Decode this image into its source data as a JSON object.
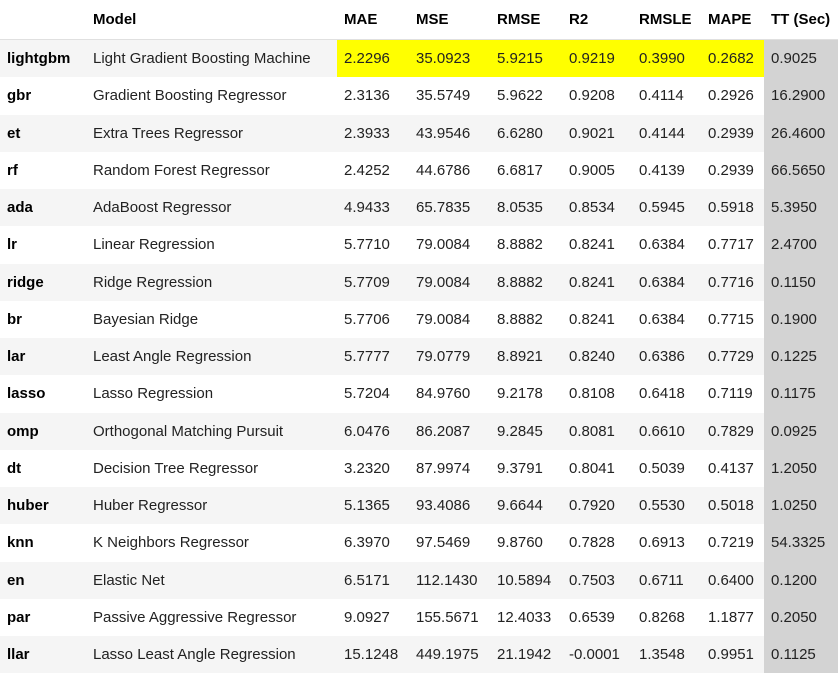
{
  "table": {
    "columns": [
      "",
      "Model",
      "MAE",
      "MSE",
      "RMSE",
      "R2",
      "RMSLE",
      "MAPE",
      "TT (Sec)"
    ],
    "rows": [
      {
        "key": "lightgbm",
        "model": "Light Gradient Boosting Machine",
        "mae": "2.2296",
        "mse": "35.0923",
        "rmse": "5.9215",
        "r2": "0.9219",
        "rmsle": "0.3990",
        "mape": "0.2682",
        "tt": "0.9025"
      },
      {
        "key": "gbr",
        "model": "Gradient Boosting Regressor",
        "mae": "2.3136",
        "mse": "35.5749",
        "rmse": "5.9622",
        "r2": "0.9208",
        "rmsle": "0.4114",
        "mape": "0.2926",
        "tt": "16.2900"
      },
      {
        "key": "et",
        "model": "Extra Trees Regressor",
        "mae": "2.3933",
        "mse": "43.9546",
        "rmse": "6.6280",
        "r2": "0.9021",
        "rmsle": "0.4144",
        "mape": "0.2939",
        "tt": "26.4600"
      },
      {
        "key": "rf",
        "model": "Random Forest Regressor",
        "mae": "2.4252",
        "mse": "44.6786",
        "rmse": "6.6817",
        "r2": "0.9005",
        "rmsle": "0.4139",
        "mape": "0.2939",
        "tt": "66.5650"
      },
      {
        "key": "ada",
        "model": "AdaBoost Regressor",
        "mae": "4.9433",
        "mse": "65.7835",
        "rmse": "8.0535",
        "r2": "0.8534",
        "rmsle": "0.5945",
        "mape": "0.5918",
        "tt": "5.3950"
      },
      {
        "key": "lr",
        "model": "Linear Regression",
        "mae": "5.7710",
        "mse": "79.0084",
        "rmse": "8.8882",
        "r2": "0.8241",
        "rmsle": "0.6384",
        "mape": "0.7717",
        "tt": "2.4700"
      },
      {
        "key": "ridge",
        "model": "Ridge Regression",
        "mae": "5.7709",
        "mse": "79.0084",
        "rmse": "8.8882",
        "r2": "0.8241",
        "rmsle": "0.6384",
        "mape": "0.7716",
        "tt": "0.1150"
      },
      {
        "key": "br",
        "model": "Bayesian Ridge",
        "mae": "5.7706",
        "mse": "79.0084",
        "rmse": "8.8882",
        "r2": "0.8241",
        "rmsle": "0.6384",
        "mape": "0.7715",
        "tt": "0.1900"
      },
      {
        "key": "lar",
        "model": "Least Angle Regression",
        "mae": "5.7777",
        "mse": "79.0779",
        "rmse": "8.8921",
        "r2": "0.8240",
        "rmsle": "0.6386",
        "mape": "0.7729",
        "tt": "0.1225"
      },
      {
        "key": "lasso",
        "model": "Lasso Regression",
        "mae": "5.7204",
        "mse": "84.9760",
        "rmse": "9.2178",
        "r2": "0.8108",
        "rmsle": "0.6418",
        "mape": "0.7119",
        "tt": "0.1175"
      },
      {
        "key": "omp",
        "model": "Orthogonal Matching Pursuit",
        "mae": "6.0476",
        "mse": "86.2087",
        "rmse": "9.2845",
        "r2": "0.8081",
        "rmsle": "0.6610",
        "mape": "0.7829",
        "tt": "0.0925"
      },
      {
        "key": "dt",
        "model": "Decision Tree Regressor",
        "mae": "3.2320",
        "mse": "87.9974",
        "rmse": "9.3791",
        "r2": "0.8041",
        "rmsle": "0.5039",
        "mape": "0.4137",
        "tt": "1.2050"
      },
      {
        "key": "huber",
        "model": "Huber Regressor",
        "mae": "5.1365",
        "mse": "93.4086",
        "rmse": "9.6644",
        "r2": "0.7920",
        "rmsle": "0.5530",
        "mape": "0.5018",
        "tt": "1.0250"
      },
      {
        "key": "knn",
        "model": "K Neighbors Regressor",
        "mae": "6.3970",
        "mse": "97.5469",
        "rmse": "9.8760",
        "r2": "0.7828",
        "rmsle": "0.6913",
        "mape": "0.7219",
        "tt": "54.3325"
      },
      {
        "key": "en",
        "model": "Elastic Net",
        "mae": "6.5171",
        "mse": "112.1430",
        "rmse": "10.5894",
        "r2": "0.7503",
        "rmsle": "0.6711",
        "mape": "0.6400",
        "tt": "0.1200"
      },
      {
        "key": "par",
        "model": "Passive Aggressive Regressor",
        "mae": "9.0927",
        "mse": "155.5671",
        "rmse": "12.4033",
        "r2": "0.6539",
        "rmsle": "0.8268",
        "mape": "1.1877",
        "tt": "0.2050"
      },
      {
        "key": "llar",
        "model": "Lasso Least Angle Regression",
        "mae": "15.1248",
        "mse": "449.1975",
        "rmse": "21.1942",
        "r2": "-0.0001",
        "rmsle": "1.3548",
        "mape": "0.9951",
        "tt": "0.1125"
      }
    ],
    "best_row_highlight_color": "#ffff00",
    "tt_column_color": "#d3d3d3",
    "stripe_color": "#f5f5f5"
  }
}
